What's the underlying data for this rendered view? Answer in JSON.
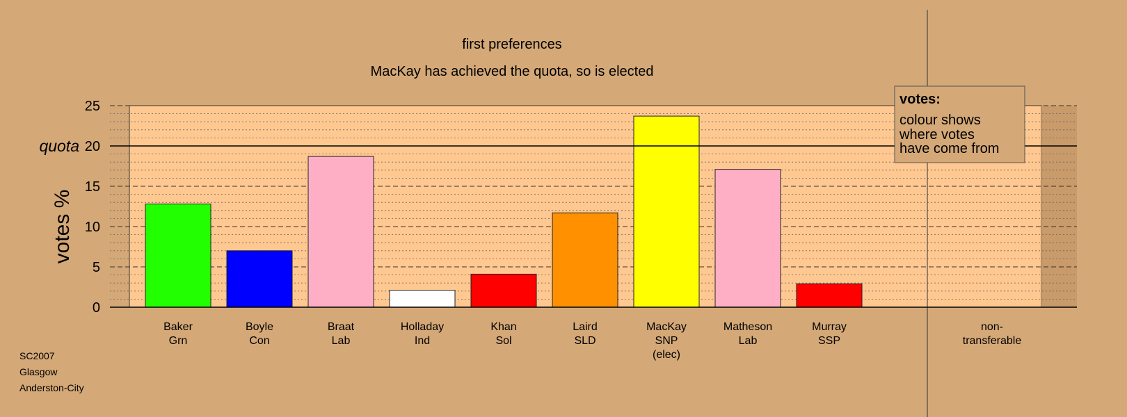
{
  "chart_data": {
    "type": "bar",
    "title": "first preferences",
    "subtitle": "MacKay has achieved the quota, so is elected",
    "ylabel": "votes %",
    "ylim": [
      0,
      25
    ],
    "yticks": [
      0,
      5,
      10,
      15,
      20,
      25
    ],
    "quota": 20,
    "quota_label": "quota",
    "categories": [
      [
        "Baker",
        "Grn"
      ],
      [
        "Boyle",
        "Con"
      ],
      [
        "Braat",
        "Lab"
      ],
      [
        "Holladay",
        "Ind"
      ],
      [
        "Khan",
        "Sol"
      ],
      [
        "Laird",
        "SLD"
      ],
      [
        "MacKay",
        "SNP",
        "(elec)"
      ],
      [
        "Matheson",
        "Lab"
      ],
      [
        "Murray",
        "SSP"
      ]
    ],
    "values": [
      12.8,
      7.0,
      18.7,
      2.1,
      4.1,
      11.7,
      23.7,
      17.1,
      2.9
    ],
    "colors": [
      "#22ff00",
      "#0000ff",
      "#ffafc5",
      "#ffffff",
      "#ff0000",
      "#ff9000",
      "#ffff00",
      "#ffafc5",
      "#ff0000"
    ],
    "nontransferable": {
      "label": [
        "non-",
        "transferable"
      ],
      "value": 0
    },
    "legend": {
      "title": "votes:",
      "lines": [
        "colour shows",
        "where votes",
        "have come from"
      ]
    },
    "source": [
      "SC2007",
      "Glasgow",
      "Anderston-City"
    ],
    "grid": true,
    "plot_background": "#ffc890",
    "page_background": "#d4a877"
  }
}
